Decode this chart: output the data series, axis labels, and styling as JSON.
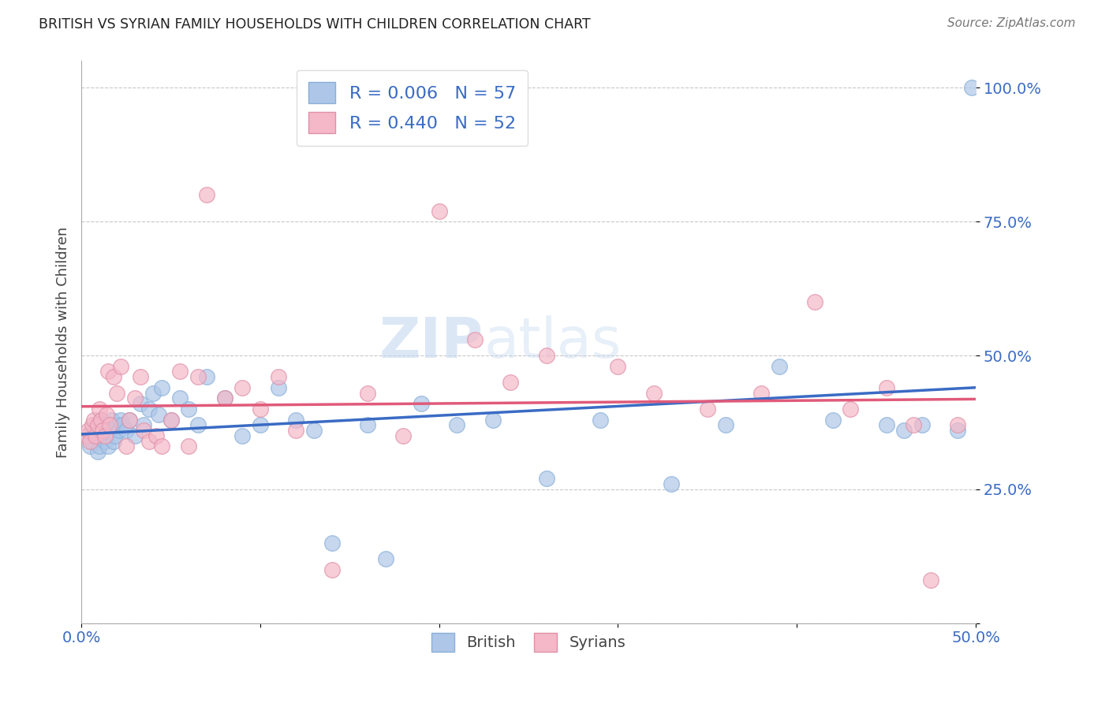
{
  "title": "BRITISH VS SYRIAN FAMILY HOUSEHOLDS WITH CHILDREN CORRELATION CHART",
  "source": "Source: ZipAtlas.com",
  "xlabel": "",
  "ylabel": "Family Households with Children",
  "xlim": [
    0.0,
    0.5
  ],
  "ylim": [
    0.0,
    1.05
  ],
  "xticks": [
    0.0,
    0.1,
    0.2,
    0.3,
    0.4,
    0.5
  ],
  "xticklabels": [
    "0.0%",
    "",
    "",
    "",
    "",
    "50.0%"
  ],
  "yticks": [
    0.0,
    0.25,
    0.5,
    0.75,
    1.0
  ],
  "yticklabels": [
    "",
    "25.0%",
    "50.0%",
    "75.0%",
    "100.0%"
  ],
  "british_R": 0.006,
  "british_N": 57,
  "syrian_R": 0.44,
  "syrian_N": 52,
  "british_color": "#aec6e8",
  "syrian_color": "#f4b8c8",
  "british_line_color": "#3a6bc4",
  "syrian_line_color": "#e05a7a",
  "watermark_zip": "ZIP",
  "watermark_atlas": "atlas",
  "legend_british_label": "British",
  "legend_syrian_label": "Syrians",
  "british_x": [
    0.003,
    0.005,
    0.006,
    0.007,
    0.008,
    0.009,
    0.01,
    0.011,
    0.012,
    0.013,
    0.014,
    0.015,
    0.016,
    0.017,
    0.018,
    0.019,
    0.02,
    0.021,
    0.022,
    0.023,
    0.025,
    0.027,
    0.03,
    0.033,
    0.035,
    0.038,
    0.04,
    0.043,
    0.045,
    0.05,
    0.055,
    0.06,
    0.065,
    0.07,
    0.08,
    0.09,
    0.1,
    0.11,
    0.12,
    0.13,
    0.14,
    0.16,
    0.17,
    0.19,
    0.21,
    0.23,
    0.26,
    0.29,
    0.33,
    0.36,
    0.39,
    0.42,
    0.45,
    0.46,
    0.47,
    0.49,
    0.498
  ],
  "british_y": [
    0.35,
    0.33,
    0.34,
    0.36,
    0.35,
    0.32,
    0.33,
    0.38,
    0.37,
    0.34,
    0.35,
    0.33,
    0.36,
    0.38,
    0.34,
    0.35,
    0.37,
    0.36,
    0.38,
    0.37,
    0.36,
    0.38,
    0.35,
    0.41,
    0.37,
    0.4,
    0.43,
    0.39,
    0.44,
    0.38,
    0.42,
    0.4,
    0.37,
    0.46,
    0.42,
    0.35,
    0.37,
    0.44,
    0.38,
    0.36,
    0.15,
    0.37,
    0.12,
    0.41,
    0.37,
    0.38,
    0.27,
    0.38,
    0.26,
    0.37,
    0.48,
    0.38,
    0.37,
    0.36,
    0.37,
    0.36,
    1.0
  ],
  "syrian_x": [
    0.003,
    0.004,
    0.005,
    0.006,
    0.007,
    0.008,
    0.009,
    0.01,
    0.011,
    0.012,
    0.013,
    0.014,
    0.015,
    0.016,
    0.018,
    0.02,
    0.022,
    0.025,
    0.027,
    0.03,
    0.033,
    0.035,
    0.038,
    0.042,
    0.045,
    0.05,
    0.055,
    0.06,
    0.065,
    0.07,
    0.08,
    0.09,
    0.1,
    0.11,
    0.12,
    0.14,
    0.16,
    0.18,
    0.2,
    0.22,
    0.24,
    0.26,
    0.3,
    0.32,
    0.35,
    0.38,
    0.41,
    0.43,
    0.45,
    0.465,
    0.475,
    0.49
  ],
  "syrian_y": [
    0.35,
    0.36,
    0.34,
    0.37,
    0.38,
    0.35,
    0.37,
    0.4,
    0.38,
    0.36,
    0.35,
    0.39,
    0.47,
    0.37,
    0.46,
    0.43,
    0.48,
    0.33,
    0.38,
    0.42,
    0.46,
    0.36,
    0.34,
    0.35,
    0.33,
    0.38,
    0.47,
    0.33,
    0.46,
    0.8,
    0.42,
    0.44,
    0.4,
    0.46,
    0.36,
    0.1,
    0.43,
    0.35,
    0.77,
    0.53,
    0.45,
    0.5,
    0.48,
    0.43,
    0.4,
    0.43,
    0.6,
    0.4,
    0.44,
    0.37,
    0.08,
    0.37
  ]
}
